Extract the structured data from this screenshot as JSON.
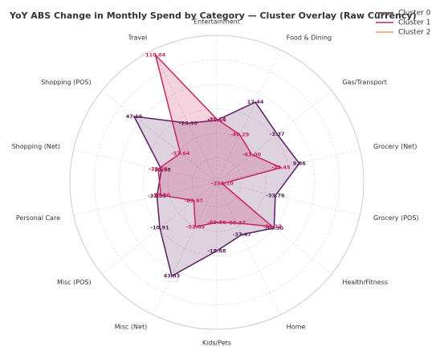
{
  "chart_data": {
    "type": "radar",
    "title": "YoY ABS Change in Monthly Spend by Category — Cluster Overlay (Raw Currency)",
    "categories": [
      "Entertainment",
      "Food & Dining",
      "Gas/Transport",
      "Grocery (Net)",
      "Grocery (POS)",
      "Health/Fitness",
      "Home",
      "Kids/Pets",
      "Misc (Net)",
      "Misc (POS)",
      "Personal Care",
      "Shopping (Net)",
      "Shopping (POS)",
      "Travel"
    ],
    "rlim": [
      -140,
      120
    ],
    "series": [
      {
        "name": "Cluster 0",
        "color": "#5a1f5e",
        "values": [
          -30.14,
          17.44,
          -3.37,
          9.86,
          -33.76,
          -10.3,
          -37.47,
          -18.68,
          43.83,
          -10.91,
          -31.5,
          -39.58,
          47.16,
          -23.9
        ],
        "value_labels": [
          "-30.14",
          "17.44",
          "-3.37",
          "9.86",
          "-33.76",
          "-10.30",
          "-37.47",
          "-18.68",
          "43.83",
          "-10.91",
          "-31.50",
          "-39.58",
          "47.16",
          "-23.90"
        ]
      },
      {
        "name": "Cluster 1",
        "color": "#c8255e",
        "values": [
          -28.14,
          -46.29,
          -61,
          -23.45,
          -130.1,
          -14.17,
          -60.37,
          -69,
          -52.85,
          -87.97,
          -38.5,
          -33.58,
          -57.64,
          110.04
        ],
        "value_labels": [
          "-28.14",
          "-46.29",
          "-61.00",
          "-23.45",
          "-130.10",
          "-14.17",
          "-60.37",
          "-69.00",
          "-52.85",
          "-87.97",
          "-38.50",
          "-33.58",
          "-57.64",
          "110.04"
        ]
      },
      {
        "name": "Cluster 2",
        "color": "#f0926a",
        "values": [
          null,
          null,
          null,
          null,
          null,
          null,
          null,
          null,
          null,
          null,
          null,
          null,
          null,
          null
        ]
      }
    ]
  }
}
